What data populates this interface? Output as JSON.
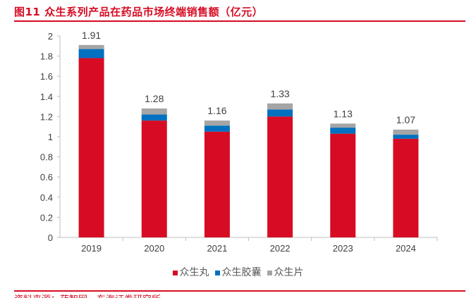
{
  "title": "图11  众生系列产品在药品市场终端销售额（亿元）",
  "source": "资料来源：药智网，东海证券研究所",
  "chart_data": {
    "type": "bar",
    "stacked": true,
    "title": "众生系列产品在药品市场终端销售额（亿元）",
    "categories": [
      "2019",
      "2020",
      "2021",
      "2022",
      "2023",
      "2024"
    ],
    "series": [
      {
        "name": "众生丸",
        "color": "#d70c24",
        "values": [
          1.78,
          1.16,
          1.05,
          1.2,
          1.03,
          0.98
        ]
      },
      {
        "name": "众生胶囊",
        "color": "#0070c0",
        "values": [
          0.09,
          0.06,
          0.06,
          0.07,
          0.06,
          0.04
        ]
      },
      {
        "name": "众生片",
        "color": "#a5a5a5",
        "values": [
          0.04,
          0.06,
          0.05,
          0.06,
          0.04,
          0.05
        ]
      }
    ],
    "totals": [
      "1.91",
      "1.28",
      "1.16",
      "1.33",
      "1.13",
      "1.07"
    ],
    "yticks": [
      "0",
      "0.2",
      "0.4",
      "0.6",
      "0.8",
      "1",
      "1.2",
      "1.4",
      "1.6",
      "1.8",
      "2"
    ],
    "ylim": [
      0,
      2
    ],
    "legend": "bottom",
    "grid": false
  }
}
